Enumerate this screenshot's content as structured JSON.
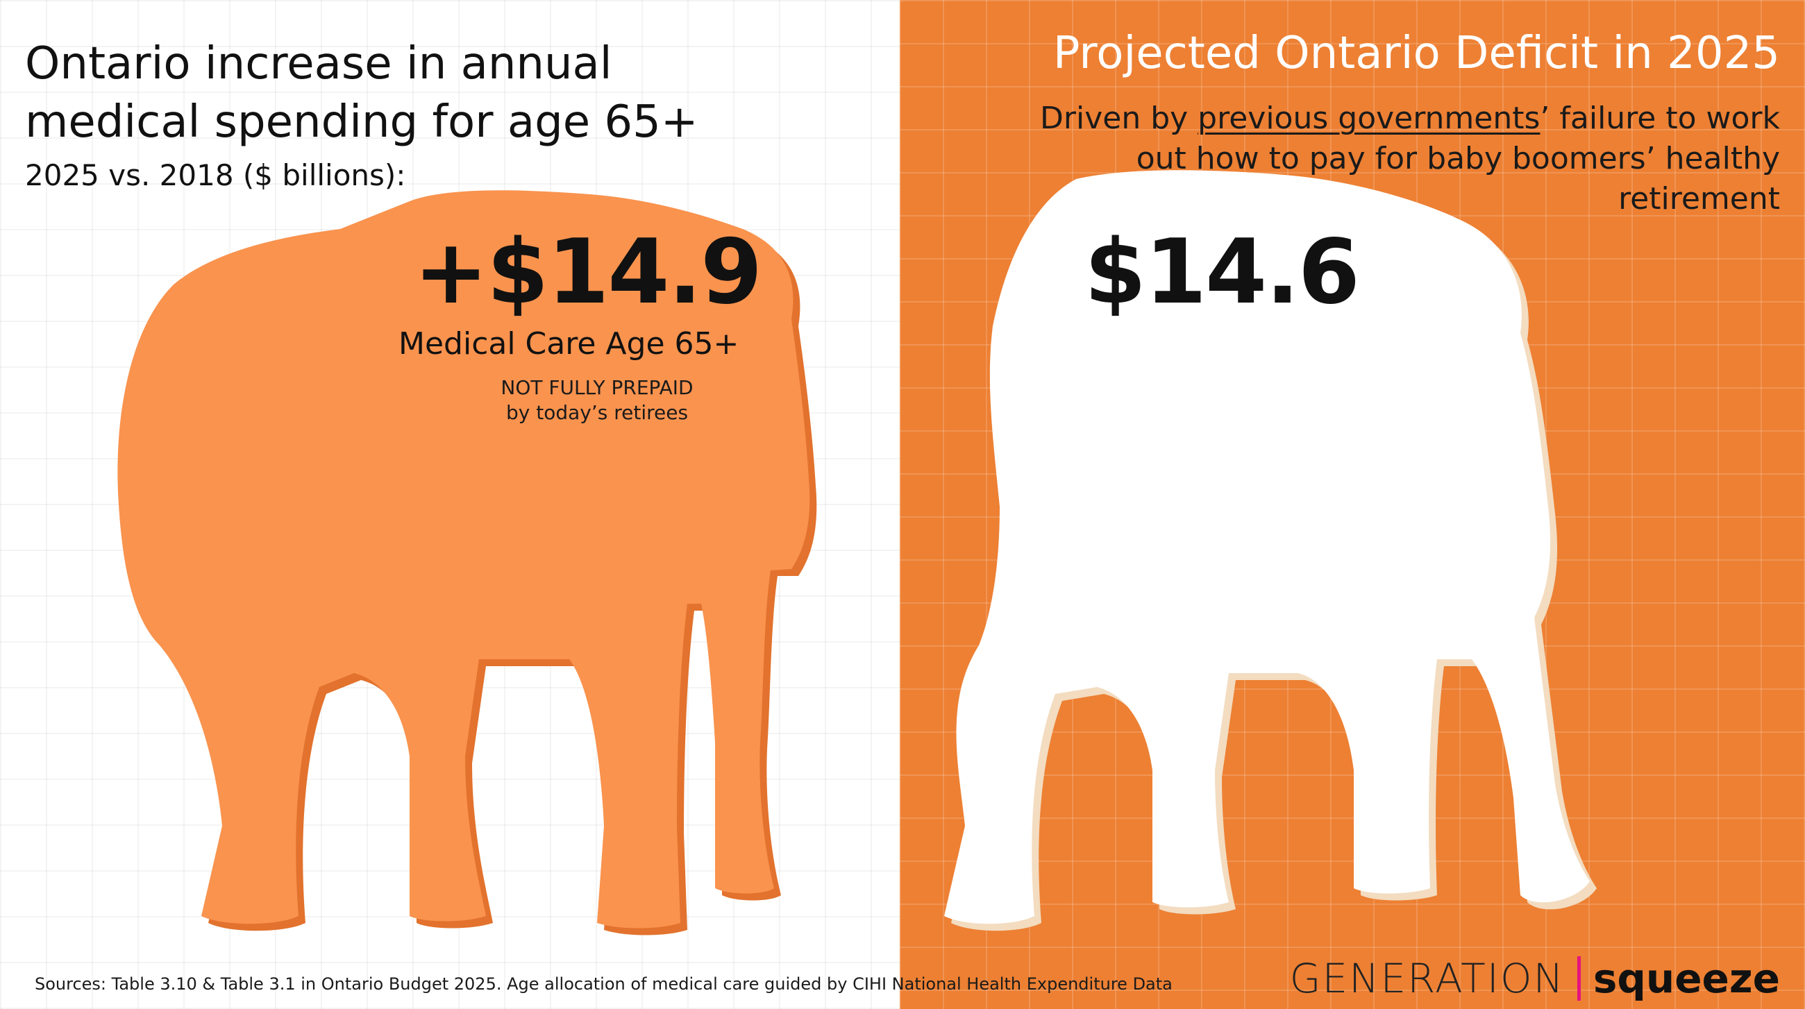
{
  "left": {
    "title": "Ontario increase in annual medical spending for age 65+",
    "subtitle": "2025 vs. 2018 ($ billions):",
    "value": "+$14.9",
    "label": "Medical Care Age 65+",
    "note_line1": "NOT FULLY PREPAID",
    "note_line2": "by today’s retirees",
    "elephant_color": "#F9934E",
    "shadow_color": "#E2722D"
  },
  "right": {
    "title": "Projected Ontario Deficit in 2025",
    "subtitle_prefix": "Driven by ",
    "subtitle_link": "previous governments",
    "subtitle_suffix": "’ failure to work out how to pay for baby boomers’ healthy retirement",
    "value": "$14.6",
    "background_color": "#ED8033",
    "elephant_color": "#FFFFFF",
    "shadow_color": "#F3DCC0"
  },
  "footer": {
    "sources": "Sources: Table 3.10 & Table 3.1 in Ontario Budget 2025.  Age allocation of medical care guided by CIHI National Health Expenditure Data"
  },
  "logo": {
    "part1": "GENERATION",
    "part2": "squeeze",
    "divider_color": "#E6137F"
  }
}
